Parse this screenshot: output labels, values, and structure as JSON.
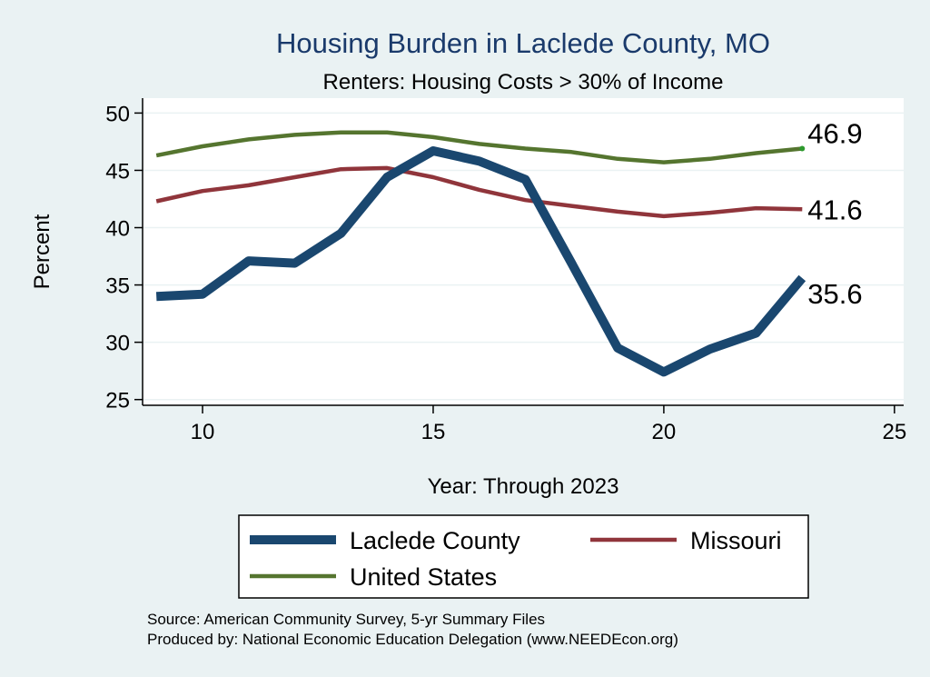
{
  "chart_data": {
    "type": "line",
    "title": "Housing Burden in Laclede County, MO",
    "subtitle": "Renters: Housing Costs > 30% of Income",
    "xlabel": "Year: Through 2023",
    "ylabel": "Percent",
    "xlim": [
      8.7,
      25.2
    ],
    "ylim": [
      24.5,
      51.3
    ],
    "xticks": [
      10,
      15,
      20,
      25
    ],
    "yticks": [
      25,
      30,
      35,
      40,
      45,
      50
    ],
    "grid": true,
    "legend": "bottom",
    "series": [
      {
        "name": "Laclede County",
        "color": "#1a476f",
        "x": [
          9,
          10,
          11,
          12,
          13,
          14,
          15,
          16,
          17,
          18,
          19,
          20,
          21,
          22,
          23
        ],
        "values": [
          34.0,
          34.2,
          37.1,
          36.9,
          39.5,
          44.4,
          46.7,
          45.8,
          44.2,
          36.9,
          29.5,
          27.4,
          29.4,
          30.8,
          35.6
        ],
        "end_label": "35.6"
      },
      {
        "name": "Missouri",
        "color": "#90353b",
        "x": [
          9,
          10,
          11,
          12,
          13,
          14,
          15,
          16,
          17,
          18,
          19,
          20,
          21,
          22,
          23
        ],
        "values": [
          42.3,
          43.2,
          43.7,
          44.4,
          45.1,
          45.2,
          44.4,
          43.3,
          42.4,
          41.9,
          41.4,
          41.0,
          41.3,
          41.7,
          41.6
        ],
        "end_label": "41.6"
      },
      {
        "name": "United States",
        "color": "#55752f",
        "x": [
          9,
          10,
          11,
          12,
          13,
          14,
          15,
          16,
          17,
          18,
          19,
          20,
          21,
          22,
          23
        ],
        "values": [
          46.3,
          47.1,
          47.7,
          48.1,
          48.3,
          48.3,
          47.9,
          47.3,
          46.9,
          46.6,
          46.0,
          45.7,
          46.0,
          46.5,
          46.9
        ],
        "end_label": "46.9"
      }
    ]
  },
  "notes": {
    "source": "Source: American Community Survey, 5-yr Summary Files",
    "producer": "Produced by: National Economic Education Delegation (www.NEEDEcon.org)"
  }
}
